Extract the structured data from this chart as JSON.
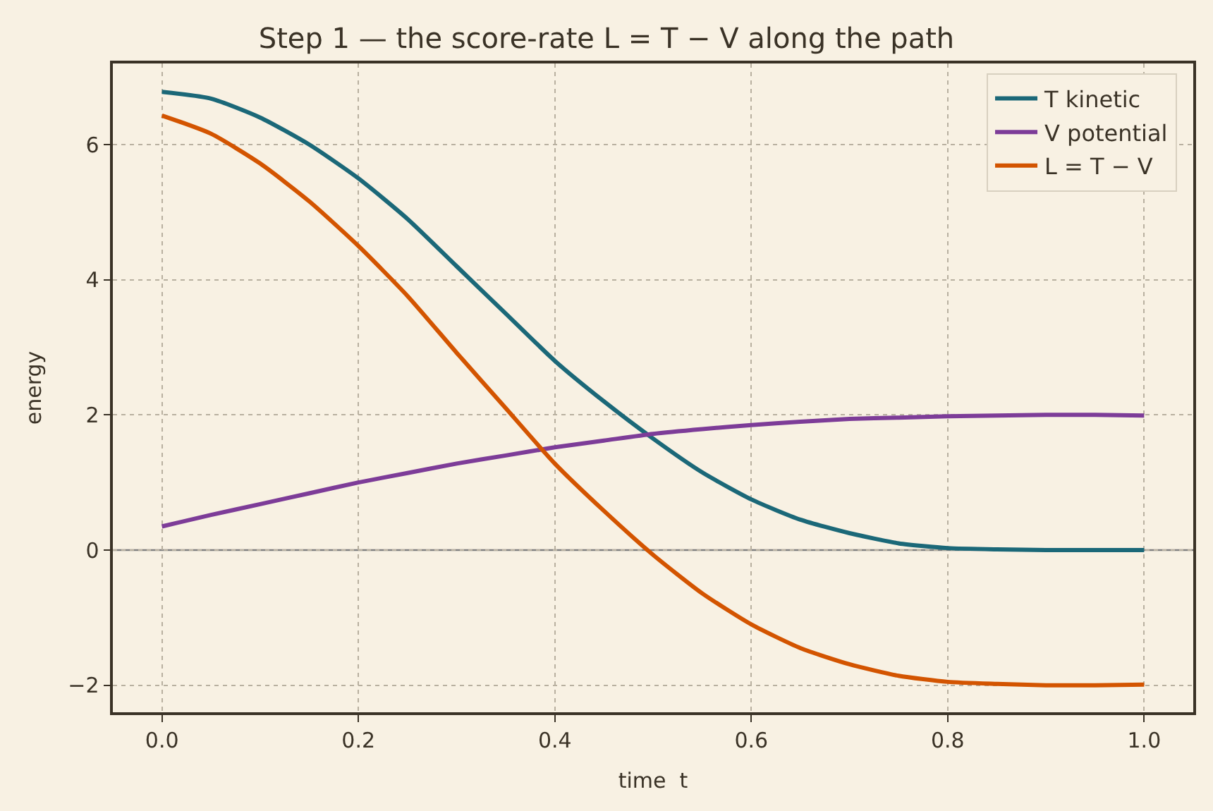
{
  "chart_data": {
    "type": "line",
    "title": "Step 1 — the score-rate L = T − V along the path",
    "xlabel": "time  t",
    "ylabel": "energy",
    "x": [
      0,
      0.05,
      0.1,
      0.15,
      0.2,
      0.25,
      0.3,
      0.35,
      0.4,
      0.45,
      0.5,
      0.55,
      0.6,
      0.65,
      0.7,
      0.75,
      0.8,
      0.85,
      0.9,
      0.95,
      1.0
    ],
    "series": [
      {
        "name": "T kinetic",
        "color": "#1b6878",
        "values": [
          6.78,
          6.68,
          6.4,
          6.0,
          5.5,
          4.9,
          4.2,
          3.5,
          2.8,
          2.2,
          1.65,
          1.15,
          0.75,
          0.45,
          0.25,
          0.1,
          0.03,
          0.01,
          0,
          0,
          0
        ]
      },
      {
        "name": "V potential",
        "color": "#7d3c98",
        "values": [
          0.35,
          0.52,
          0.68,
          0.84,
          1.0,
          1.14,
          1.28,
          1.4,
          1.52,
          1.62,
          1.72,
          1.79,
          1.85,
          1.9,
          1.94,
          1.96,
          1.98,
          1.99,
          2.0,
          2.0,
          1.99
        ]
      },
      {
        "name": "L = T − V",
        "color": "#d35400",
        "values": [
          6.43,
          6.16,
          5.72,
          5.16,
          4.5,
          3.76,
          2.92,
          2.1,
          1.28,
          0.58,
          -0.07,
          -0.64,
          -1.1,
          -1.45,
          -1.69,
          -1.86,
          -1.95,
          -1.98,
          -2.0,
          -2.0,
          -1.99
        ]
      }
    ],
    "xlim": [
      -0.05,
      1.05
    ],
    "ylim": [
      -2.4,
      7.2
    ],
    "xticks": [
      {
        "value": 0,
        "label": "0.0"
      },
      0.2,
      0.4,
      0.6,
      0.8,
      {
        "value": 1,
        "label": "1.0"
      }
    ],
    "yticks": [
      {
        "value": -2,
        "label": "−2"
      },
      0,
      2,
      4,
      6
    ],
    "ref_lines": [
      {
        "axis": "y",
        "value": 0,
        "label": null,
        "color": "#808080"
      }
    ],
    "grid": true,
    "legend": "top right",
    "marker": "none",
    "line_style": "solid"
  }
}
